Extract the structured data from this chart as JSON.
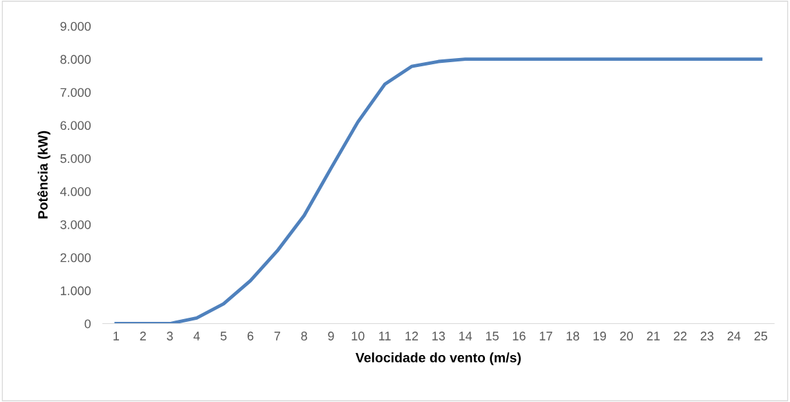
{
  "chart_data": {
    "type": "line",
    "xlabel": "Velocidade do vento (m/s)",
    "ylabel": "Potência (kW)",
    "categories": [
      "1",
      "2",
      "3",
      "4",
      "5",
      "6",
      "7",
      "8",
      "9",
      "10",
      "11",
      "12",
      "13",
      "14",
      "15",
      "16",
      "17",
      "18",
      "19",
      "20",
      "21",
      "22",
      "23",
      "24",
      "25"
    ],
    "series": [
      {
        "color": "#4f81bd",
        "values": [
          0,
          0,
          0,
          170,
          600,
          1300,
          2200,
          3270,
          4700,
          6100,
          7240,
          7780,
          7930,
          8000,
          8000,
          8000,
          8000,
          8000,
          8000,
          8000,
          8000,
          8000,
          8000,
          8000,
          8000
        ]
      }
    ],
    "ylim": [
      0,
      9000
    ],
    "yticks": [
      0,
      {
        "value": 1000,
        "label": "1.000"
      },
      {
        "value": 2000,
        "label": "2.000"
      },
      {
        "value": 3000,
        "label": "3.000"
      },
      {
        "value": 4000,
        "label": "4.000"
      },
      {
        "value": 5000,
        "label": "5.000"
      },
      {
        "value": 6000,
        "label": "6.000"
      },
      {
        "value": 7000,
        "label": "7.000"
      },
      {
        "value": 8000,
        "label": "8.000"
      },
      {
        "value": 9000,
        "label": "9.000"
      }
    ],
    "grid": false,
    "legend": false,
    "marker": "none",
    "line_style": "solid"
  }
}
